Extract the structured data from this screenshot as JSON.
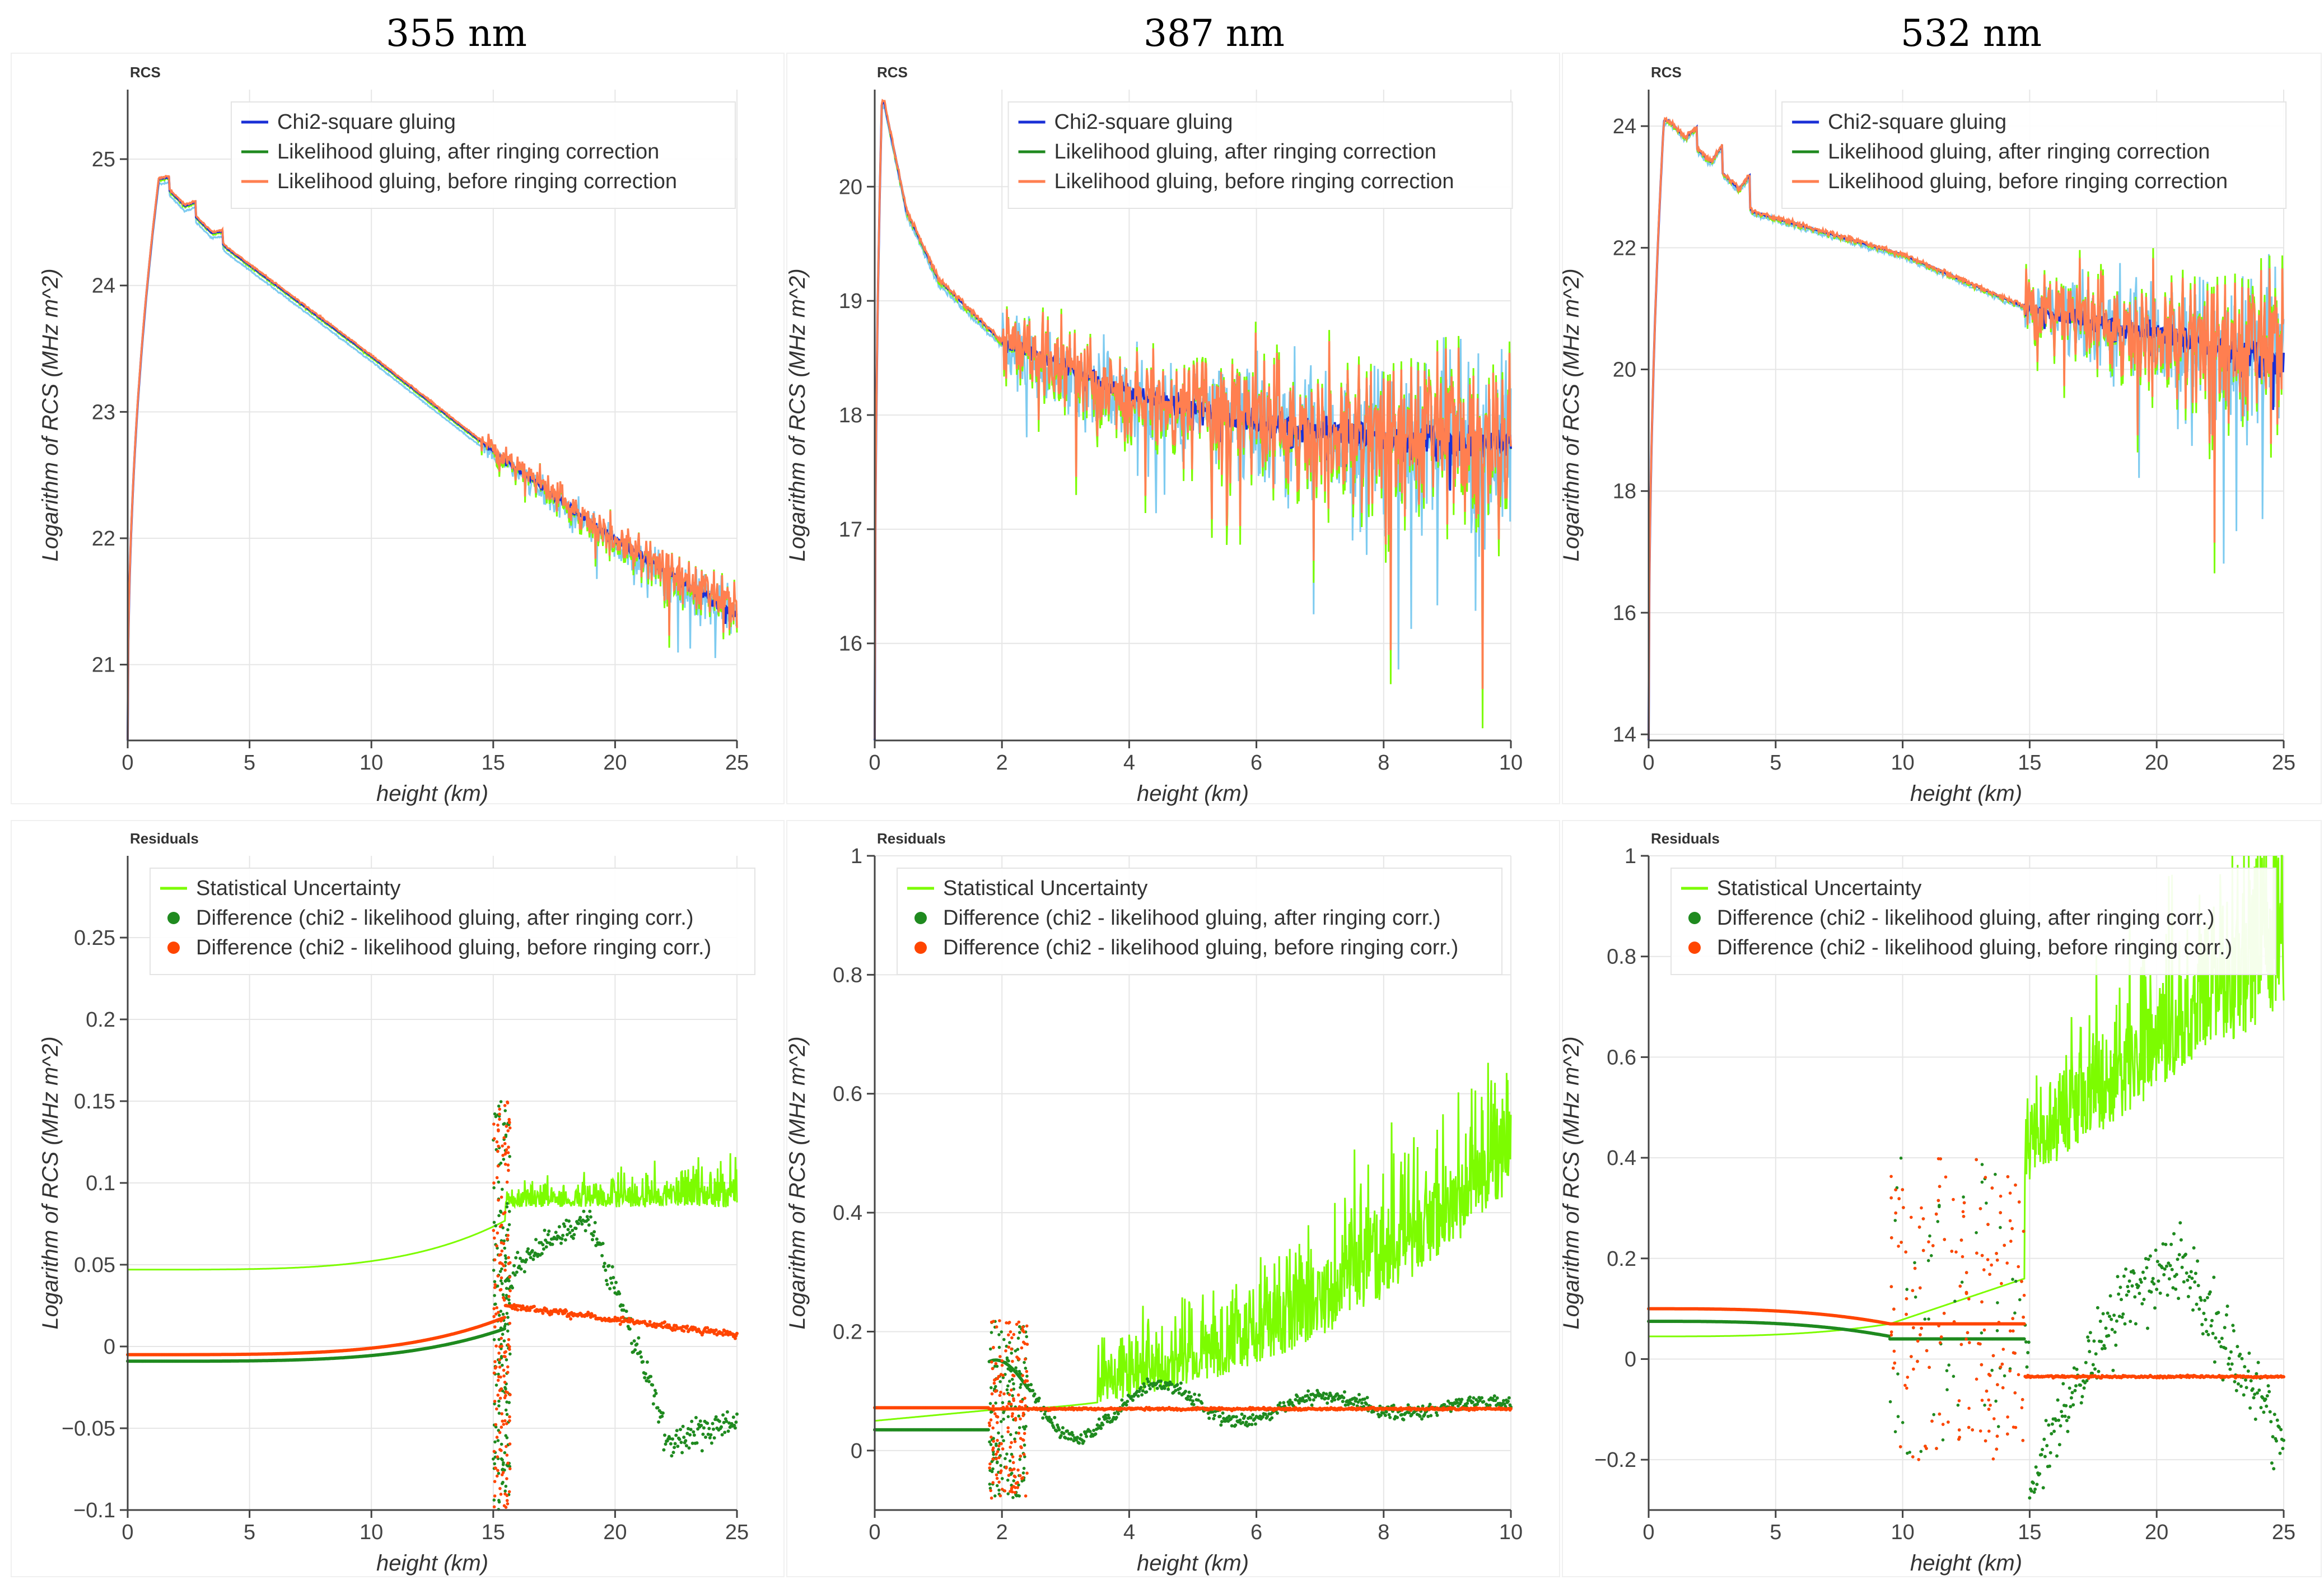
{
  "column_titles": [
    "355 nm",
    "387 nm",
    "532 nm"
  ],
  "colors": {
    "chi2": "#1a2fd6",
    "after": "#1f8a1f",
    "before_rcs": "#ff7f50",
    "before_resid": "#ff4500",
    "stat": "#7cfc00",
    "light_blue": "#7ecbf0",
    "grid": "#e6e6e6"
  },
  "chart_data": [
    {
      "id": "rcs-355",
      "type": "line",
      "tag": "RCS",
      "xlabel": "height (km)",
      "ylabel": "Logarithm of RCS (MHz m^2)",
      "xlim": [
        0,
        25
      ],
      "ylim": [
        20.4,
        25.55
      ],
      "xticks": [
        0,
        5,
        10,
        15,
        20,
        25
      ],
      "yticks": [
        21,
        22,
        23,
        24,
        25
      ],
      "legend": [
        "Chi2-square gluing",
        "Likelihood gluing, after ringing correction",
        "Likelihood gluing, before ringing correction"
      ],
      "model": {
        "kind": "rcs",
        "peak_x": 1.7,
        "peak_y": 25.0,
        "bumps": [
          [
            1.7,
            0.1
          ],
          [
            2.8,
            0.12
          ],
          [
            3.9,
            0.1
          ]
        ],
        "anchors": [
          [
            1.0,
            24.9
          ],
          [
            4.1,
            24.3
          ],
          [
            10,
            23.45
          ],
          [
            15,
            22.7
          ],
          [
            20,
            22.0
          ],
          [
            25,
            21.4
          ]
        ],
        "noise_start": 14.5,
        "noise_amp": 0.25,
        "drop": 4.1
      }
    },
    {
      "id": "rcs-387",
      "type": "line",
      "tag": "RCS",
      "xlabel": "height (km)",
      "ylabel": "Logarithm of RCS (MHz m^2)",
      "xlim": [
        0,
        10
      ],
      "ylim": [
        15.15,
        20.85
      ],
      "xticks": [
        0,
        2,
        4,
        6,
        8,
        10
      ],
      "yticks": [
        16,
        17,
        18,
        19,
        20
      ],
      "legend": [
        "Chi2-square gluing",
        "Likelihood gluing, after ringing correction",
        "Likelihood gluing, before ringing correction"
      ],
      "model": {
        "kind": "rcs",
        "peak_x": 0.15,
        "peak_y": 20.75,
        "bumps": [],
        "anchors": [
          [
            0.15,
            20.75
          ],
          [
            0.5,
            19.8
          ],
          [
            1.0,
            19.2
          ],
          [
            2.0,
            18.65
          ],
          [
            4.0,
            18.2
          ],
          [
            6.0,
            17.95
          ],
          [
            8.0,
            17.8
          ],
          [
            10.0,
            17.75
          ]
        ],
        "noise_start": 2.0,
        "noise_amp": 0.9,
        "drop": 0
      }
    },
    {
      "id": "rcs-532",
      "type": "line",
      "tag": "RCS",
      "xlabel": "height (km)",
      "ylabel": "Logarithm of RCS (MHz m^2)",
      "xlim": [
        0,
        25
      ],
      "ylim": [
        13.9,
        24.6
      ],
      "xticks": [
        0,
        5,
        10,
        15,
        20,
        25
      ],
      "yticks": [
        14,
        16,
        18,
        20,
        22,
        24
      ],
      "legend": [
        "Chi2-square gluing",
        "Likelihood gluing, after ringing correction",
        "Likelihood gluing, before ringing correction"
      ],
      "model": {
        "kind": "rcs",
        "peak_x": 0.8,
        "peak_y": 24.1,
        "bumps": [
          [
            1.9,
            0.35
          ],
          [
            2.9,
            0.45
          ],
          [
            4.0,
            0.55
          ]
        ],
        "anchors": [
          [
            0.8,
            24.1
          ],
          [
            1.5,
            23.8
          ],
          [
            3.5,
            23.0
          ],
          [
            4.1,
            22.6
          ],
          [
            10,
            21.9
          ],
          [
            15,
            21.0
          ],
          [
            20,
            20.6
          ],
          [
            25,
            20.1
          ]
        ],
        "noise_start": 14.8,
        "noise_amp": 1.6,
        "drop": 4.1
      }
    },
    {
      "id": "resid-355",
      "type": "scatter",
      "tag": "Residuals",
      "xlabel": "height (km)",
      "ylabel": "Logarithm of RCS (MHz m^2)",
      "xlim": [
        0,
        25
      ],
      "ylim": [
        -0.1,
        0.3
      ],
      "xticks": [
        0,
        5,
        10,
        15,
        20,
        25
      ],
      "yticks": [
        -0.1,
        -0.05,
        0,
        0.05,
        0.1,
        0.15,
        0.2,
        0.25
      ],
      "legend": [
        "Statistical Uncertainty",
        "Difference (chi2 - likelihood gluing, after ringing corr.)",
        "Difference (chi2 - likelihood gluing, before ringing corr.)"
      ],
      "model": {
        "kind": "r355"
      }
    },
    {
      "id": "resid-387",
      "type": "scatter",
      "tag": "Residuals",
      "xlabel": "height (km)",
      "ylabel": "Logarithm of RCS (MHz m^2)",
      "xlim": [
        0,
        10
      ],
      "ylim": [
        -0.1,
        1.0
      ],
      "xticks": [
        0,
        2,
        4,
        6,
        8,
        10
      ],
      "yticks": [
        0,
        0.2,
        0.4,
        0.6,
        0.8,
        1
      ],
      "legend": [
        "Statistical Uncertainty",
        "Difference (chi2 - likelihood gluing, after ringing corr.)",
        "Difference (chi2 - likelihood gluing, before ringing corr.)"
      ],
      "model": {
        "kind": "r387"
      }
    },
    {
      "id": "resid-532",
      "type": "scatter",
      "tag": "Residuals",
      "xlabel": "height (km)",
      "ylabel": "Logarithm of RCS (MHz m^2)",
      "xlim": [
        0,
        25
      ],
      "ylim": [
        -0.3,
        1.0
      ],
      "xticks": [
        0,
        5,
        10,
        15,
        20,
        25
      ],
      "yticks": [
        -0.2,
        0,
        0.2,
        0.4,
        0.6,
        0.8,
        1
      ],
      "legend": [
        "Statistical Uncertainty",
        "Difference (chi2 - likelihood gluing, after ringing corr.)",
        "Difference (chi2 - likelihood gluing, before ringing corr.)"
      ],
      "model": {
        "kind": "r532"
      }
    }
  ]
}
